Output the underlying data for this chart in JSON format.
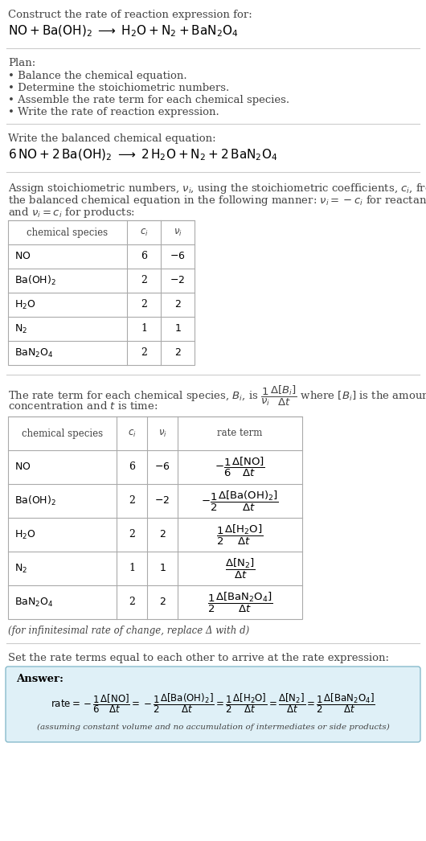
{
  "bg_color": "#ffffff",
  "text_color": "#000000",
  "gray_text": "#444444",
  "table_border_color": "#aaaaaa",
  "answer_bg_color": "#dff0f7",
  "answer_border_color": "#88bbcc",
  "title_line1": "Construct the rate of reaction expression for:",
  "plan_header": "Plan:",
  "plan_items": [
    "• Balance the chemical equation.",
    "• Determine the stoichiometric numbers.",
    "• Assemble the rate term for each chemical species.",
    "• Write the rate of reaction expression."
  ],
  "balanced_label": "Write the balanced chemical equation:",
  "species_math": [
    "NO",
    "Ba(OH)_2",
    "H_2O",
    "N_2",
    "BaN_2O_4"
  ],
  "ci_vals": [
    "6",
    "2",
    "2",
    "1",
    "2"
  ],
  "nu_vals": [
    "-6",
    "-2",
    "2",
    "1",
    "2"
  ],
  "infinitesimal_note": "(for infinitesimal rate of change, replace Δ with d)",
  "set_equal_label": "Set the rate terms equal to each other to arrive at the rate expression:",
  "answer_label": "Answer:",
  "assuming_note": "(assuming constant volume and no accumulation of intermediates or side products)"
}
